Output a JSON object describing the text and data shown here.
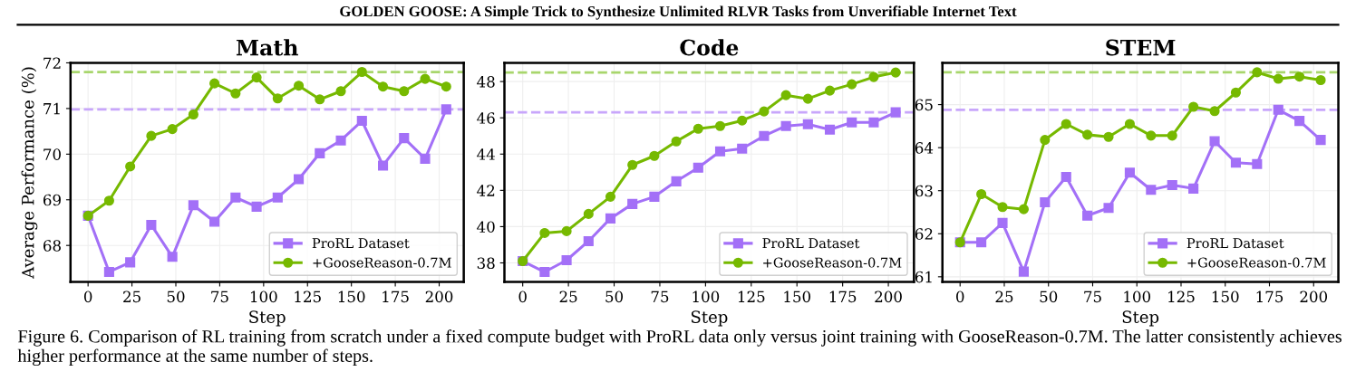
{
  "chart_data": [
    {
      "type": "line",
      "title": "Math",
      "xlabel": "Step",
      "ylabel": "Average Performance (%)",
      "annotations": [
        "GOLDEN GOOSE: A Simple Trick to Synthesize Unlimited RLVR Tasks from Unverifiable Internet Text",
        "Figure 6. Comparison of RL training from scratch under a fixed compute budget with ProRL data only versus joint training with GooseReason-0.7M. The latter consistently achieves higher performance at the same number of steps."
      ],
      "x": [
        0,
        12,
        24,
        36,
        48,
        60,
        72,
        84,
        96,
        108,
        120,
        132,
        144,
        156,
        168,
        180,
        192,
        204
      ],
      "series": [
        {
          "name": "ProRL Dataset",
          "color": "#a370f7",
          "marker": "square",
          "values": [
            68.65,
            67.42,
            67.63,
            68.45,
            67.75,
            68.88,
            68.52,
            69.05,
            68.85,
            69.05,
            69.45,
            70.02,
            70.3,
            70.73,
            69.75,
            70.35,
            69.9,
            70.98
          ]
        },
        {
          "name": "+GooseReason-0.7M",
          "color": "#76b900",
          "marker": "circle",
          "values": [
            68.65,
            68.98,
            69.73,
            70.4,
            70.55,
            70.87,
            71.55,
            71.33,
            71.68,
            71.22,
            71.5,
            71.2,
            71.38,
            71.8,
            71.48,
            71.38,
            71.65,
            71.48
          ]
        }
      ],
      "ref_lines": [
        {
          "axis": "y",
          "value": 70.98,
          "color": "#c8a6fb",
          "line_style": "dashed"
        },
        {
          "axis": "y",
          "value": 71.8,
          "color": "#a8d66c",
          "line_style": "dashed"
        }
      ],
      "xlim": [
        -10,
        214
      ],
      "xticks": [
        0,
        25,
        50,
        75,
        100,
        125,
        150,
        175,
        200
      ],
      "ylim": [
        67.2,
        72.0
      ],
      "yticks": [
        68,
        69,
        70,
        71,
        72
      ],
      "grid": true,
      "legend": "lower right",
      "line_style": "solid"
    },
    {
      "type": "line",
      "title": "Code",
      "xlabel": "Step",
      "x": [
        0,
        12,
        24,
        36,
        48,
        60,
        72,
        84,
        96,
        108,
        120,
        132,
        144,
        156,
        168,
        180,
        192,
        204
      ],
      "series": [
        {
          "name": "ProRL Dataset",
          "color": "#a370f7",
          "marker": "square",
          "values": [
            38.1,
            37.5,
            38.15,
            39.2,
            40.45,
            41.25,
            41.65,
            42.5,
            43.25,
            44.15,
            44.3,
            45.0,
            45.55,
            45.65,
            45.35,
            45.75,
            45.75,
            46.3
          ]
        },
        {
          "name": "+GooseReason-0.7M",
          "color": "#76b900",
          "marker": "circle",
          "values": [
            38.1,
            39.65,
            39.75,
            40.7,
            41.65,
            43.4,
            43.9,
            44.7,
            45.4,
            45.55,
            45.85,
            46.35,
            47.25,
            47.05,
            47.5,
            47.85,
            48.25,
            48.5
          ]
        }
      ],
      "ref_lines": [
        {
          "axis": "y",
          "value": 46.3,
          "color": "#c8a6fb",
          "line_style": "dashed"
        },
        {
          "axis": "y",
          "value": 48.5,
          "color": "#a8d66c",
          "line_style": "dashed"
        }
      ],
      "xlim": [
        -10,
        214
      ],
      "xticks": [
        0,
        25,
        50,
        75,
        100,
        125,
        150,
        175,
        200
      ],
      "ylim": [
        36.95,
        49.03
      ],
      "yticks": [
        38,
        40,
        42,
        44,
        46,
        48
      ],
      "grid": true,
      "legend": "lower right",
      "line_style": "solid"
    },
    {
      "type": "line",
      "title": "STEM",
      "xlabel": "Step",
      "x": [
        0,
        12,
        24,
        36,
        48,
        60,
        72,
        84,
        96,
        108,
        120,
        132,
        144,
        156,
        168,
        180,
        192,
        204
      ],
      "series": [
        {
          "name": "ProRL Dataset",
          "color": "#a370f7",
          "marker": "square",
          "values": [
            61.8,
            61.8,
            62.25,
            61.12,
            62.73,
            63.32,
            62.42,
            62.6,
            63.42,
            63.02,
            63.13,
            63.05,
            64.15,
            63.65,
            63.62,
            64.88,
            64.62,
            64.18
          ]
        },
        {
          "name": "+GooseReason-0.7M",
          "color": "#76b900",
          "marker": "circle",
          "values": [
            61.8,
            62.92,
            62.62,
            62.57,
            64.18,
            64.55,
            64.3,
            64.25,
            64.55,
            64.28,
            64.28,
            64.95,
            64.85,
            65.28,
            65.75,
            65.6,
            65.65,
            65.57
          ]
        }
      ],
      "ref_lines": [
        {
          "axis": "y",
          "value": 64.88,
          "color": "#c8a6fb",
          "line_style": "dashed"
        },
        {
          "axis": "y",
          "value": 65.75,
          "color": "#a8d66c",
          "line_style": "dashed"
        }
      ],
      "xlim": [
        -10,
        214
      ],
      "xticks": [
        0,
        25,
        50,
        75,
        100,
        125,
        150,
        175,
        200
      ],
      "ylim": [
        60.88,
        65.97
      ],
      "yticks": [
        61,
        62,
        63,
        64,
        65
      ],
      "grid": true,
      "legend": "lower right",
      "line_style": "solid"
    }
  ]
}
